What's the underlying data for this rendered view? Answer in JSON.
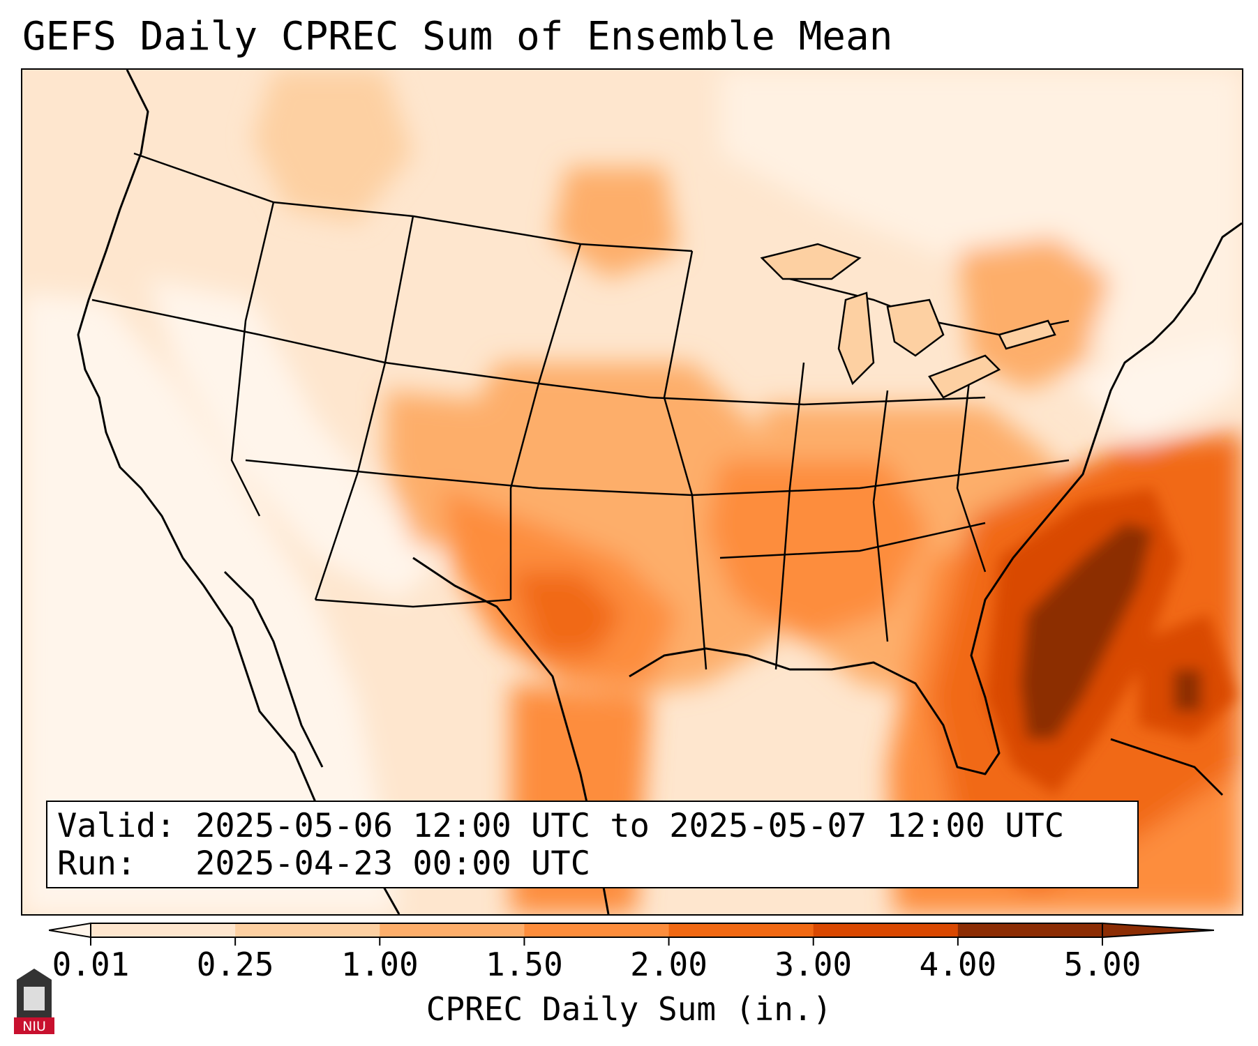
{
  "title": "GEFS Daily CPREC Sum of Ensemble Mean",
  "info": {
    "valid": "Valid: 2025-05-06 12:00 UTC to 2025-05-07 12:00 UTC",
    "run": "Run:   2025-04-23 00:00 UTC"
  },
  "colorbar": {
    "label": "CPREC Daily Sum (in.)",
    "ticks": [
      "0.01",
      "0.25",
      "1.00",
      "1.50",
      "2.00",
      "3.00",
      "4.00",
      "5.00"
    ],
    "colors": [
      "#fff5eb",
      "#fee6ce",
      "#fdd0a2",
      "#fdae6b",
      "#fd8d3c",
      "#f16913",
      "#d94801",
      "#8c2d04"
    ],
    "units": "in."
  },
  "logo": {
    "text": "NIU",
    "color": "#c8102e"
  },
  "palette": {
    "very_light": "#fff5eb",
    "light": "#fee6ce",
    "tan": "#fdd0a2",
    "light_orange": "#fdae6b",
    "orange": "#fd8d3c",
    "deep_orange": "#f16913",
    "red_orange": "#d94801",
    "dark_brown": "#8c2d04"
  }
}
